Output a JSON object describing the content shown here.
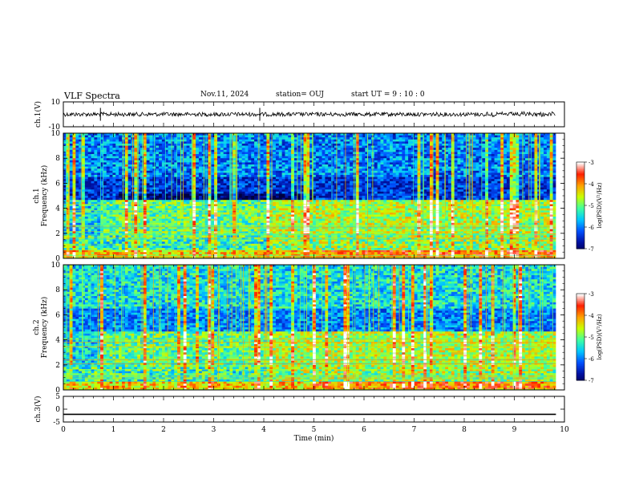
{
  "header": {
    "title": "VLF Spectra",
    "date": "Nov.11, 2024",
    "station": "station= OUJ",
    "start": "start  UT =   9 : 10 : 0"
  },
  "chart_data": [
    {
      "type": "line",
      "panel": "ch1-waveform",
      "ylabel": "ch.1(V)",
      "ylim": [
        -10,
        10
      ],
      "yticks": [
        "10",
        "-10"
      ],
      "x": [
        0,
        9.83
      ],
      "baseline": 0,
      "trace_color": "#000000"
    },
    {
      "type": "heatmap",
      "panel": "ch1-spectrogram",
      "ylabel": "ch.1\nFrequency (kHz)",
      "ylim": [
        0,
        10
      ],
      "yticks": [
        "0",
        "2",
        "4",
        "6",
        "8",
        "10"
      ],
      "data_xmax": 9.83,
      "colorbar": {
        "label": "log(PSD)(V²/Hz)",
        "ticks": [
          "-3",
          "-4",
          "-5",
          "-6",
          "-7"
        ],
        "range": [
          -7,
          -3
        ]
      }
    },
    {
      "type": "heatmap",
      "panel": "ch2-spectrogram",
      "ylabel": "ch.2\nFrequency (kHz)",
      "ylim": [
        0,
        10
      ],
      "yticks": [
        "0",
        "2",
        "4",
        "6",
        "8",
        "10"
      ],
      "data_xmax": 9.83,
      "colorbar": {
        "label": "log(PSD)(V²/Hz)",
        "ticks": [
          "-3",
          "-4",
          "-5",
          "-6",
          "-7"
        ],
        "range": [
          -7,
          -3
        ]
      }
    },
    {
      "type": "line",
      "panel": "ch3-waveform",
      "ylabel": "ch.3(V)",
      "ylim": [
        -5,
        5
      ],
      "yticks": [
        "5",
        "0",
        "-5"
      ],
      "x": [
        0,
        9.83
      ],
      "y": [
        -2,
        -2
      ],
      "trace_color": "#000000"
    }
  ],
  "xaxis": {
    "label": "Time (min)",
    "xlim": [
      0,
      10
    ],
    "ticks": [
      "0",
      "1",
      "2",
      "3",
      "4",
      "5",
      "6",
      "7",
      "8",
      "9",
      "10"
    ]
  },
  "colormap": [
    "#000040",
    "#0010a0",
    "#0050ff",
    "#00c8ff",
    "#40ffa0",
    "#c8ff00",
    "#ffa000",
    "#ff2000",
    "#ffffff"
  ]
}
